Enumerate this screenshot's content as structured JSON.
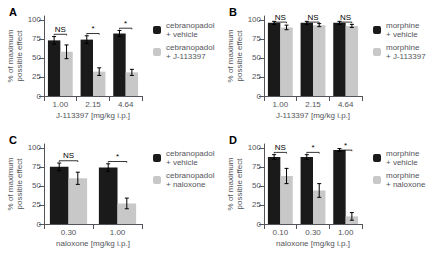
{
  "chart_data": [
    {
      "type": "bar",
      "title": "A",
      "xlabel": "J-113397 [mg/kg i.p.]",
      "ylabel": "% of maximum\npossible effect",
      "categories": [
        "1.00",
        "2.15",
        "4.64"
      ],
      "series": [
        {
          "name": "cebranopadol\n+ vehicle",
          "color": "#1a1a1a",
          "values": [
            73,
            74,
            82
          ],
          "errors": [
            5,
            5,
            4
          ]
        },
        {
          "name": "cebranopadol\n+ J-113397",
          "color": "#c8c8c8",
          "values": [
            58,
            32,
            31
          ],
          "errors": [
            9,
            5,
            4
          ]
        }
      ],
      "annotations": [
        "NS",
        "*",
        "*"
      ],
      "ylim": [
        0,
        105
      ],
      "yticks": [
        0,
        25,
        50,
        75,
        100
      ],
      "grid": false,
      "legend": "right"
    },
    {
      "type": "bar",
      "title": "B",
      "xlabel": "J-113397 [mg/kg i.p.]",
      "ylabel": "% of maximum\npossible effect",
      "categories": [
        "1.00",
        "2.15",
        "4.64"
      ],
      "series": [
        {
          "name": "morphine\n+ vehicle",
          "color": "#1a1a1a",
          "values": [
            96,
            96,
            96
          ],
          "errors": [
            2,
            2,
            2
          ]
        },
        {
          "name": "morphine\n+ J-113397",
          "color": "#c8c8c8",
          "values": [
            90,
            93,
            92
          ],
          "errors": [
            3,
            2,
            2
          ]
        }
      ],
      "annotations": [
        "NS",
        "NS",
        "NS"
      ],
      "ylim": [
        0,
        105
      ],
      "yticks": [
        0,
        25,
        50,
        75,
        100
      ],
      "grid": false,
      "legend": "right"
    },
    {
      "type": "bar",
      "title": "C",
      "xlabel": "naloxone [mg/kg i.p.]",
      "ylabel": "% of maximum\npossible effect",
      "categories": [
        "0.30",
        "1.00"
      ],
      "series": [
        {
          "name": "cebranopadol\n+ vehicle",
          "color": "#1a1a1a",
          "values": [
            75,
            74
          ],
          "errors": [
            5,
            5
          ]
        },
        {
          "name": "cebranopadol\n+ naloxone",
          "color": "#c8c8c8",
          "values": [
            60,
            27
          ],
          "errors": [
            8,
            7
          ]
        }
      ],
      "annotations": [
        "NS",
        "*"
      ],
      "ylim": [
        0,
        105
      ],
      "yticks": [
        0,
        25,
        50,
        75,
        100
      ],
      "grid": false,
      "legend": "right"
    },
    {
      "type": "bar",
      "title": "D",
      "xlabel": "naloxone [mg/kg i.p.]",
      "ylabel": "% of maximum\npossible effect",
      "categories": [
        "0.10",
        "0.30",
        "1.00"
      ],
      "series": [
        {
          "name": "morphine\n+ vehicle",
          "color": "#1a1a1a",
          "values": [
            88,
            88,
            97
          ],
          "errors": [
            3,
            3,
            2
          ]
        },
        {
          "name": "morphine\n+ naloxone",
          "color": "#c8c8c8",
          "values": [
            63,
            44,
            10
          ],
          "errors": [
            10,
            9,
            5
          ]
        }
      ],
      "annotations": [
        "NS",
        "*",
        "*"
      ],
      "ylim": [
        0,
        105
      ],
      "yticks": [
        0,
        25,
        50,
        75,
        100
      ],
      "grid": false,
      "legend": "right"
    }
  ]
}
